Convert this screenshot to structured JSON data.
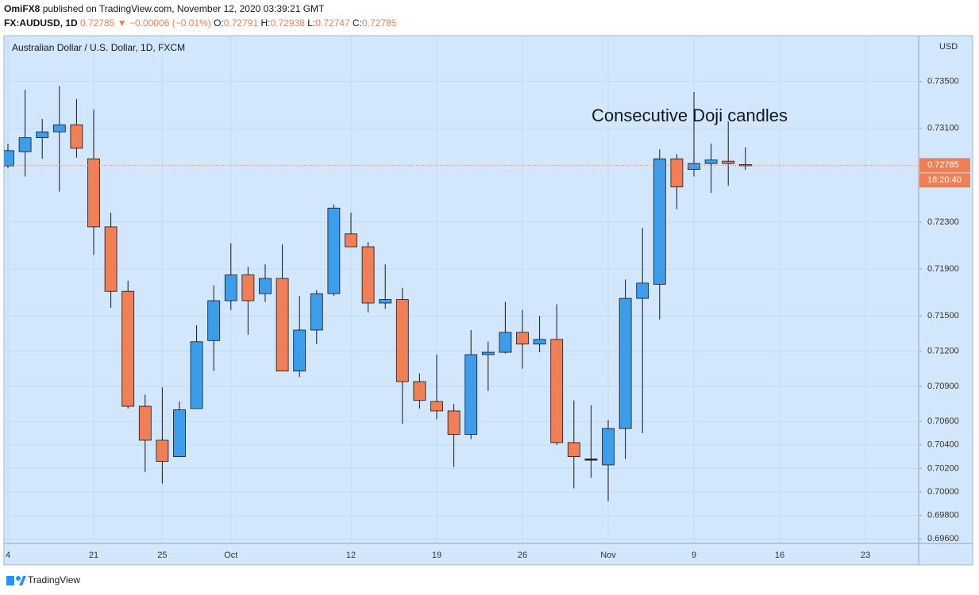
{
  "header": {
    "publisher": "OmiFX8",
    "published": "published on TradingView.com, November 12, 2020 03:39:21 GMT",
    "symbol": "FX:AUDUSD, 1D",
    "arrow": "▼",
    "change": "−0.00006 (−0.01%)",
    "o": "O:",
    "h": "H:",
    "l": "L:",
    "c": "C:"
  },
  "chart_data": {
    "type": "candlestick",
    "title": "Australian Dollar / U.S. Dollar, 1D, FXCM",
    "annotation": "Consecutive Doji candles",
    "currency": "USD",
    "countdown": "18:20:40",
    "categories": [
      "4",
      null,
      null,
      null,
      null,
      "21",
      null,
      null,
      null,
      "25",
      null,
      null,
      null,
      "Oct",
      null,
      null,
      null,
      null,
      null,
      null,
      "12",
      null,
      null,
      null,
      null,
      "19",
      null,
      null,
      null,
      null,
      "26",
      null,
      null,
      null,
      null,
      "Nov",
      null,
      null,
      null,
      null,
      "9",
      null,
      null,
      null,
      null,
      "16",
      null,
      null,
      null,
      null,
      "23",
      null,
      null,
      null
    ],
    "open": [
      0.7278,
      0.729,
      0.7302,
      0.7307,
      0.7313,
      0.7284,
      0.7226,
      0.7171,
      0.7073,
      0.7044,
      0.703,
      0.7071,
      0.7129,
      0.7163,
      0.7185,
      0.7169,
      0.7182,
      0.7103,
      0.7138,
      0.7169,
      0.722,
      0.7209,
      0.7161,
      0.7164,
      0.7094,
      0.7077,
      0.7069,
      0.7049,
      0.7117,
      0.7119,
      0.7136,
      0.7126,
      0.713,
      0.7042,
      0.7028,
      0.7023,
      0.7054,
      0.7165,
      0.7177,
      0.7284,
      0.7275,
      0.728,
      0.7282,
      0.72791,
      null,
      null,
      null,
      null,
      null,
      null,
      null,
      null,
      null,
      null
    ],
    "high": [
      0.7297,
      0.7343,
      0.7318,
      0.7346,
      0.7335,
      0.7326,
      0.7238,
      0.718,
      0.7083,
      0.7089,
      0.7077,
      0.7142,
      0.7176,
      0.7212,
      0.7192,
      0.7194,
      0.7211,
      0.7167,
      0.7172,
      0.7245,
      0.7238,
      0.7213,
      0.7194,
      0.7174,
      0.7101,
      0.7117,
      0.7075,
      0.7138,
      0.7128,
      0.7162,
      0.7155,
      0.715,
      0.716,
      0.7078,
      0.7074,
      0.7061,
      0.7181,
      0.7225,
      0.7292,
      0.7288,
      0.7341,
      0.7297,
      0.7316,
      0.72938,
      null,
      null,
      null,
      null,
      null,
      null,
      null,
      null,
      null,
      null
    ],
    "low": [
      0.7276,
      0.7269,
      0.7284,
      0.7256,
      0.7285,
      0.7202,
      0.7157,
      0.7071,
      0.7017,
      0.7007,
      0.703,
      0.7071,
      0.7103,
      0.7155,
      0.7134,
      0.7162,
      0.7103,
      0.7098,
      0.7126,
      0.7167,
      0.7209,
      0.7153,
      0.7156,
      0.7058,
      0.7071,
      0.7062,
      0.7021,
      0.7045,
      0.7086,
      0.7118,
      0.7105,
      0.7119,
      0.704,
      0.7003,
      0.7012,
      0.6992,
      0.7028,
      0.705,
      0.7147,
      0.7241,
      0.7269,
      0.7255,
      0.7261,
      0.72747,
      null,
      null,
      null,
      null,
      null,
      null,
      null,
      null,
      null,
      null
    ],
    "close": [
      0.7291,
      0.7302,
      0.7307,
      0.7313,
      0.7293,
      0.7226,
      0.7171,
      0.7073,
      0.7044,
      0.7026,
      0.707,
      0.7128,
      0.7163,
      0.7185,
      0.7163,
      0.7182,
      0.7103,
      0.7138,
      0.7169,
      0.7242,
      0.7209,
      0.7161,
      0.7164,
      0.7094,
      0.7078,
      0.7069,
      0.7049,
      0.7117,
      0.7119,
      0.7136,
      0.7126,
      0.713,
      0.7042,
      0.703,
      0.7028,
      0.7054,
      0.7165,
      0.7178,
      0.7284,
      0.726,
      0.728,
      0.7283,
      0.728,
      0.72785,
      null,
      null,
      null,
      null,
      null,
      null,
      null,
      null,
      null,
      null
    ],
    "up_color": "#3d9de9",
    "down_color": "#ef7f57",
    "doji_color": "#131722",
    "last_color": "#ef7f57",
    "ylim": [
      0.6956,
      0.7389
    ],
    "yticks": [
      {
        "value": 0.735,
        "label": "0.73500"
      },
      {
        "value": 0.731,
        "label": "0.73100"
      },
      {
        "value": 0.723,
        "label": "0.72300"
      },
      {
        "value": 0.719,
        "label": "0.71900"
      },
      {
        "value": 0.715,
        "label": "0.71500"
      },
      {
        "value": 0.712,
        "label": "0.71200"
      },
      {
        "value": 0.709,
        "label": "0.70900"
      },
      {
        "value": 0.706,
        "label": "0.70600"
      },
      {
        "value": 0.704,
        "label": "0.70400"
      },
      {
        "value": 0.702,
        "label": "0.70200"
      },
      {
        "value": 0.7,
        "label": "0.70000"
      },
      {
        "value": 0.698,
        "label": "0.69800"
      },
      {
        "value": 0.696,
        "label": "0.69600"
      }
    ],
    "grid": true
  },
  "footer": {
    "brand": "TradingView"
  }
}
